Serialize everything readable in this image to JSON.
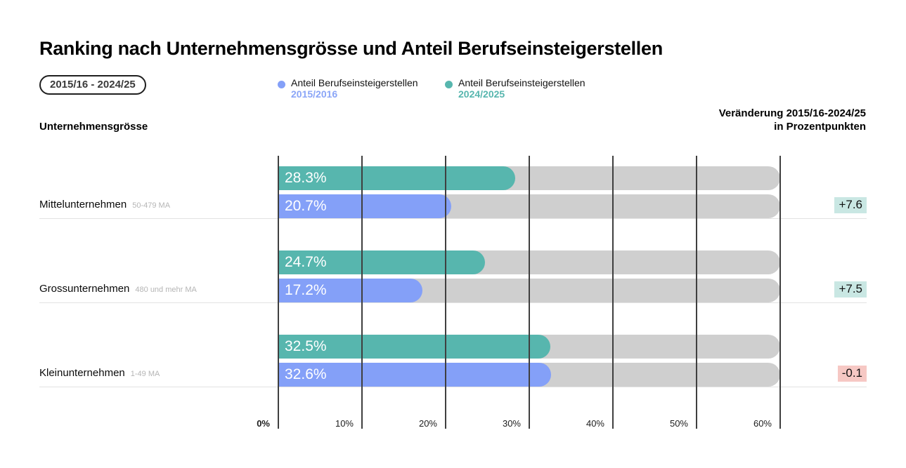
{
  "title": "Ranking nach Unternehmensgrösse und Anteil Berufseinsteigerstellen",
  "period_badge": "2015/16 - 2024/25",
  "legend": [
    {
      "label": "Anteil Berufseinsteigerstellen",
      "sublabel": "2015/2016",
      "color": "#84a0f8"
    },
    {
      "label": "Anteil Berufseinsteigerstellen",
      "sublabel": "2024/2025",
      "color": "#57b6ae"
    }
  ],
  "left_column_header": "Unternehmensgrösse",
  "right_column_header_line1": "Veränderung 2015/16-2024/25",
  "right_column_header_line2": "in Prozentpunkten",
  "colors": {
    "series_2015": "#84a0f8",
    "series_2024": "#57b6ae",
    "track": "#cfcfcf",
    "gridline": "#3f3f3f",
    "badge_positive_bg": "#c9e7e3",
    "badge_negative_bg": "#f6c8c4",
    "sublabel_gray": "#b5b5b5"
  },
  "chart_data": {
    "type": "bar",
    "orientation": "horizontal",
    "title": "Ranking nach Unternehmensgrösse und Anteil Berufseinsteigerstellen",
    "categories": [
      "Mittelunternehmen",
      "Grossunternehmen",
      "Kleinunternehmen"
    ],
    "category_sublabels": [
      "50-479 MA",
      "480 und mehr MA",
      "1-49 MA"
    ],
    "series": [
      {
        "name": "Anteil Berufseinsteigerstellen 2015/2016",
        "color": "#84a0f8",
        "values": [
          20.7,
          17.2,
          32.6
        ],
        "labels": [
          "20.7%",
          "17.2%",
          "32.6%"
        ]
      },
      {
        "name": "Anteil Berufseinsteigerstellen 2024/2025",
        "color": "#57b6ae",
        "values": [
          28.3,
          24.7,
          32.5
        ],
        "labels": [
          "28.3%",
          "24.7%",
          "32.5%"
        ]
      }
    ],
    "changes": [
      "+7.6",
      "+7.5",
      "-0.1"
    ],
    "changes_header": "Veränderung 2015/16-2024/25 in Prozentpunkten",
    "x_ticks": [
      "0%",
      "10%",
      "20%",
      "30%",
      "40%",
      "50%",
      "60%"
    ],
    "xlim": [
      0,
      60
    ],
    "grid": true,
    "legend_position": "top"
  }
}
